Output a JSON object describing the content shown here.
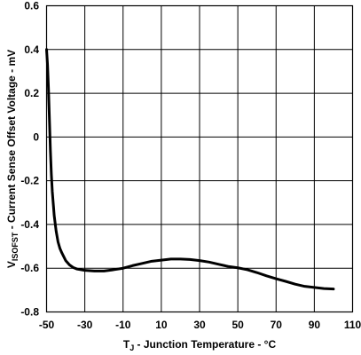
{
  "chart_data": {
    "type": "line",
    "xlabel": {
      "main": "T",
      "sub": "J",
      "rest": " - Junction Temperature - °C"
    },
    "ylabel": {
      "main": "V",
      "sub": "ISOFST",
      "rest": " - Current Sense Offset Voltage - mV"
    },
    "xlim": [
      -50,
      110
    ],
    "ylim": [
      -0.8,
      0.6
    ],
    "x_ticks": [
      -50,
      -30,
      -10,
      10,
      30,
      50,
      70,
      90,
      110
    ],
    "y_ticks": [
      0.6,
      0.4,
      0.2,
      0,
      -0.2,
      -0.4,
      -0.6,
      -0.8
    ],
    "x_tick_labels": [
      "-50",
      "-30",
      "-10",
      "10",
      "30",
      "50",
      "70",
      "90",
      "110"
    ],
    "y_tick_labels": [
      "0.6",
      "0.4",
      "0.2",
      "0",
      "-0.2",
      "-0.4",
      "-0.6",
      "-0.8"
    ],
    "grid": true,
    "series": [
      {
        "x": [
          -50,
          -49.5,
          -49,
          -48.5,
          -48,
          -47.5,
          -47,
          -46,
          -45,
          -44,
          -43,
          -42,
          -40,
          -38,
          -36,
          -34,
          -32,
          -30,
          -25,
          -20,
          -15,
          -10,
          -5,
          0,
          5,
          10,
          15,
          20,
          25,
          30,
          35,
          40,
          45,
          50,
          55,
          60,
          65,
          70,
          75,
          80,
          85,
          90,
          95,
          100
        ],
        "y": [
          0.4,
          0.33,
          0.22,
          0.08,
          -0.06,
          -0.17,
          -0.25,
          -0.36,
          -0.43,
          -0.48,
          -0.51,
          -0.53,
          -0.565,
          -0.585,
          -0.597,
          -0.604,
          -0.607,
          -0.61,
          -0.613,
          -0.613,
          -0.607,
          -0.6,
          -0.588,
          -0.578,
          -0.568,
          -0.563,
          -0.558,
          -0.558,
          -0.56,
          -0.565,
          -0.572,
          -0.582,
          -0.592,
          -0.598,
          -0.607,
          -0.62,
          -0.635,
          -0.648,
          -0.66,
          -0.673,
          -0.683,
          -0.688,
          -0.693,
          -0.695
        ]
      }
    ]
  }
}
